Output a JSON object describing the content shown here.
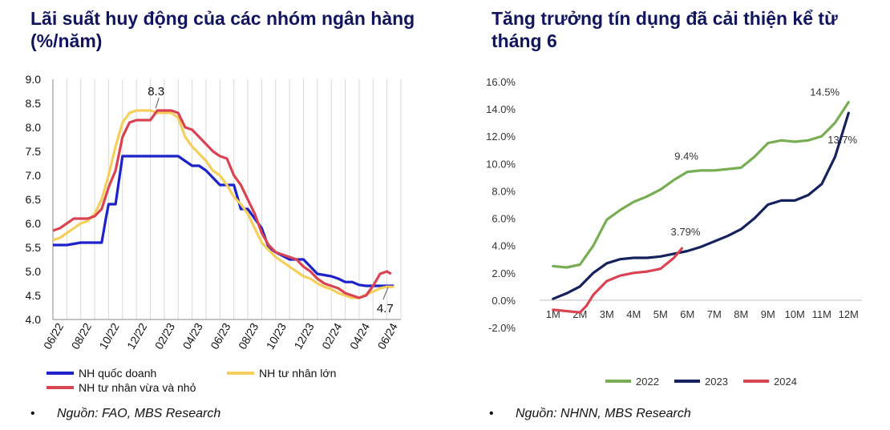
{
  "left": {
    "title": "Lãi suất huy động của các nhóm ngân hàng (%/năm)",
    "source_bullet": "•",
    "source": "Nguồn: FAO, MBS Research"
  },
  "right": {
    "title": "Tăng trưởng tín dụng đã cải thiện kể từ tháng 6",
    "source_bullet": "•",
    "source": "Nguồn: NHNN, MBS Research"
  },
  "chart_data": [
    {
      "type": "line",
      "title": "Lãi suất huy động của các nhóm ngân hàng (%/năm)",
      "ylim": [
        4.0,
        9.0
      ],
      "yticks": [
        "9.0",
        "8.5",
        "8.0",
        "7.5",
        "7.0",
        "6.5",
        "6.0",
        "5.5",
        "5.0",
        "4.5",
        "4.0"
      ],
      "yticks_values": [
        9.0,
        8.5,
        8.0,
        7.5,
        7.0,
        6.5,
        6.0,
        5.5,
        5.0,
        4.5,
        4.0
      ],
      "x_periods": 25,
      "xtick_labels": [
        "06/22",
        "08/22",
        "10/22",
        "12/22",
        "02/23",
        "04/23",
        "06/23",
        "08/23",
        "10/23",
        "12/23",
        "02/24",
        "04/24",
        "06/24"
      ],
      "grid": "vertical",
      "legend_position": "bottom",
      "series": [
        {
          "name": "NH quốc doanh",
          "color": "#1d22c9",
          "x": [
            0,
            1,
            2,
            2.5,
            3.5,
            3.8,
            4,
            4.5,
            5,
            6,
            7,
            8,
            9,
            10,
            10.5,
            11,
            12,
            13,
            13.5,
            14,
            15,
            15.5,
            16,
            17,
            18,
            19,
            20,
            20.5,
            21,
            21.5,
            22,
            22.5,
            23,
            23.5,
            24,
            24.5
          ],
          "y": [
            5.55,
            5.55,
            5.6,
            5.6,
            5.6,
            6.1,
            6.4,
            6.4,
            7.4,
            7.4,
            7.4,
            7.4,
            7.4,
            7.2,
            7.2,
            7.1,
            6.8,
            6.8,
            6.3,
            6.3,
            5.9,
            5.5,
            5.4,
            5.25,
            5.25,
            4.95,
            4.9,
            4.85,
            4.78,
            4.78,
            4.72,
            4.7,
            4.7,
            4.7,
            4.7,
            4.7
          ]
        },
        {
          "name": "NH tư nhân lớn",
          "color": "#f5cf5c",
          "x": [
            0,
            0.5,
            1,
            1.5,
            2,
            2.5,
            3,
            3.5,
            4,
            4.5,
            5,
            5.5,
            6,
            6.5,
            7,
            7.5,
            8,
            8.5,
            9,
            9.5,
            10,
            10.5,
            11,
            11.5,
            12,
            12.5,
            13,
            13.5,
            14,
            14.5,
            15,
            15.5,
            16,
            16.5,
            17,
            17.5,
            18,
            18.5,
            19,
            19.5,
            20,
            20.5,
            21,
            21.5,
            22,
            22.5,
            23,
            23.5,
            24,
            24.5
          ],
          "y": [
            5.65,
            5.7,
            5.8,
            5.9,
            6.0,
            6.05,
            6.2,
            6.5,
            7.0,
            7.6,
            8.1,
            8.3,
            8.35,
            8.35,
            8.35,
            8.3,
            8.3,
            8.3,
            8.2,
            7.8,
            7.6,
            7.45,
            7.3,
            7.1,
            7.0,
            6.8,
            6.55,
            6.4,
            6.2,
            5.9,
            5.6,
            5.45,
            5.3,
            5.2,
            5.1,
            5.0,
            4.9,
            4.85,
            4.75,
            4.68,
            4.63,
            4.55,
            4.5,
            4.45,
            4.45,
            4.52,
            4.58,
            4.65,
            4.68,
            4.68
          ]
        },
        {
          "name": "NH tư nhân vừa và nhỏ",
          "color": "#d94452",
          "x": [
            0,
            0.5,
            1,
            1.5,
            2,
            2.5,
            3,
            3.5,
            4,
            4.5,
            5,
            5.5,
            6,
            6.5,
            7,
            7.5,
            8,
            8.5,
            9,
            9.5,
            10,
            10.5,
            11,
            11.5,
            12,
            12.5,
            13,
            13.5,
            14,
            14.5,
            15,
            15.5,
            16,
            16.5,
            17,
            17.5,
            18,
            18.5,
            19,
            19.5,
            20,
            20.5,
            21,
            21.5,
            22,
            22.5,
            23,
            23.5,
            24,
            24.3
          ],
          "y": [
            5.85,
            5.9,
            6.0,
            6.1,
            6.1,
            6.1,
            6.15,
            6.3,
            6.75,
            7.1,
            7.8,
            8.1,
            8.15,
            8.15,
            8.15,
            8.35,
            8.35,
            8.35,
            8.3,
            8.0,
            7.95,
            7.8,
            7.65,
            7.5,
            7.4,
            7.35,
            7.0,
            6.8,
            6.5,
            6.2,
            5.8,
            5.55,
            5.4,
            5.35,
            5.3,
            5.25,
            5.1,
            5.0,
            4.85,
            4.75,
            4.7,
            4.65,
            4.55,
            4.5,
            4.45,
            4.5,
            4.7,
            4.95,
            5.0,
            4.95
          ]
        }
      ],
      "annotations": [
        {
          "text": "8.3",
          "x": 7.5,
          "y": 8.33
        },
        {
          "text": "4.7",
          "x": 23.9,
          "y": 4.7
        }
      ]
    },
    {
      "type": "line",
      "title": "Tăng trưởng tín dụng đã cải thiện kể từ tháng 6",
      "ylim": [
        -0.02,
        0.16
      ],
      "yticks": [
        "16.0%",
        "14.0%",
        "12.0%",
        "10.0%",
        "8.0%",
        "6.0%",
        "4.0%",
        "2.0%",
        "0.0%",
        "-2.0%"
      ],
      "yticks_values": [
        0.16,
        0.14,
        0.12,
        0.1,
        0.08,
        0.06,
        0.04,
        0.02,
        0.0,
        -0.02
      ],
      "categories": [
        "1M",
        "2M",
        "3M",
        "4M",
        "5M",
        "6M",
        "7M",
        "8M",
        "9M",
        "10M",
        "11M",
        "12M"
      ],
      "legend_position": "bottom",
      "series": [
        {
          "name": "2022",
          "color": "#78ad54",
          "x": [
            1,
            1.5,
            2,
            2.5,
            3,
            3.5,
            4,
            4.5,
            5,
            5.5,
            6,
            6.5,
            7,
            7.5,
            8,
            8.5,
            9,
            9.5,
            10,
            10.5,
            11,
            11.5,
            12
          ],
          "y": [
            0.025,
            0.024,
            0.026,
            0.04,
            0.059,
            0.066,
            0.072,
            0.076,
            0.081,
            0.088,
            0.094,
            0.095,
            0.095,
            0.096,
            0.097,
            0.105,
            0.115,
            0.117,
            0.116,
            0.117,
            0.12,
            0.13,
            0.145
          ]
        },
        {
          "name": "2023",
          "color": "#16225c",
          "x": [
            1,
            1.5,
            2,
            2.5,
            3,
            3.5,
            4,
            4.5,
            5,
            5.5,
            6,
            6.5,
            7,
            7.5,
            8,
            8.5,
            9,
            9.5,
            10,
            10.5,
            11,
            11.5,
            12
          ],
          "y": [
            0.001,
            0.005,
            0.01,
            0.02,
            0.027,
            0.03,
            0.031,
            0.031,
            0.032,
            0.034,
            0.036,
            0.039,
            0.043,
            0.047,
            0.052,
            0.06,
            0.07,
            0.073,
            0.073,
            0.077,
            0.085,
            0.105,
            0.137
          ]
        },
        {
          "name": "2024",
          "color": "#d94452",
          "x": [
            1,
            1.5,
            2,
            2.25,
            2.5,
            3,
            3.5,
            4,
            4.5,
            5,
            5.5,
            5.8
          ],
          "y": [
            -0.007,
            -0.008,
            -0.009,
            -0.004,
            0.004,
            0.014,
            0.018,
            0.02,
            0.021,
            0.023,
            0.031,
            0.038
          ]
        }
      ],
      "annotations": [
        {
          "text": "9.4%",
          "x": 6,
          "y": 0.094
        },
        {
          "text": "3.79%",
          "x": 5.8,
          "y": 0.0379
        },
        {
          "text": "14.5%",
          "x": 12,
          "y": 0.145
        },
        {
          "text": "13.7%",
          "x": 12,
          "y": 0.137
        }
      ]
    }
  ]
}
